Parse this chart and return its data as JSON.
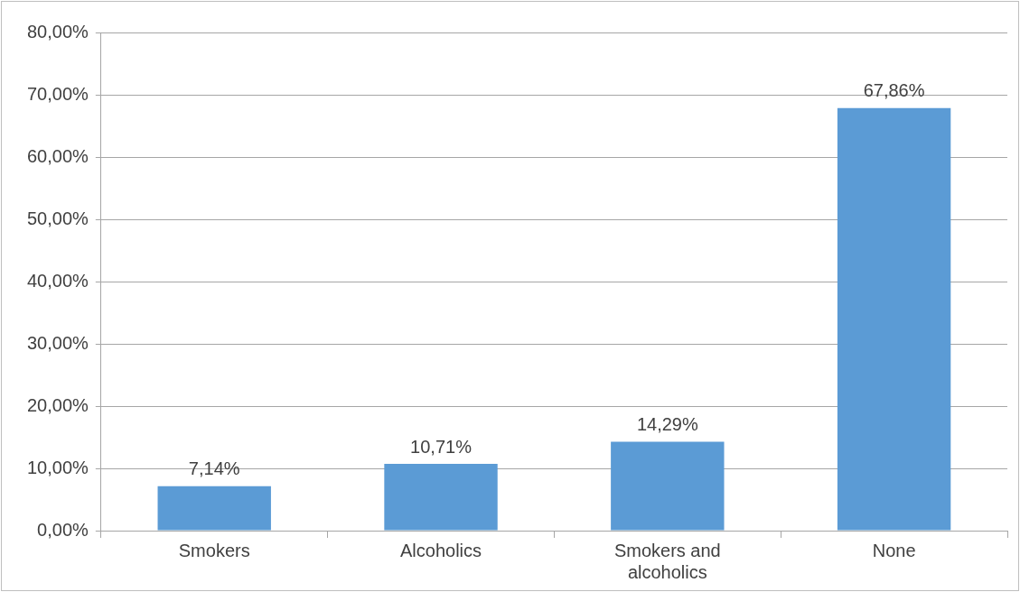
{
  "chart_data": {
    "type": "bar",
    "categories": [
      "Smokers",
      "Alcoholics",
      "Smokers and alcoholics",
      "None"
    ],
    "values": [
      7.14,
      10.71,
      14.29,
      67.86
    ],
    "value_labels": [
      "7,14%",
      "10,71%",
      "14,29%",
      "67,86%"
    ],
    "color": "#5b9bd5",
    "ylim": [
      0,
      80
    ],
    "yticks": [
      {
        "value": 0,
        "label": "0,00%"
      },
      {
        "value": 10,
        "label": "10,00%"
      },
      {
        "value": 20,
        "label": "20,00%"
      },
      {
        "value": 30,
        "label": "30,00%"
      },
      {
        "value": 40,
        "label": "40,00%"
      },
      {
        "value": 50,
        "label": "50,00%"
      },
      {
        "value": 60,
        "label": "60,00%"
      },
      {
        "value": 70,
        "label": "70,00%"
      },
      {
        "value": 80,
        "label": "80,00%"
      }
    ],
    "grid": "y",
    "legend": false
  }
}
